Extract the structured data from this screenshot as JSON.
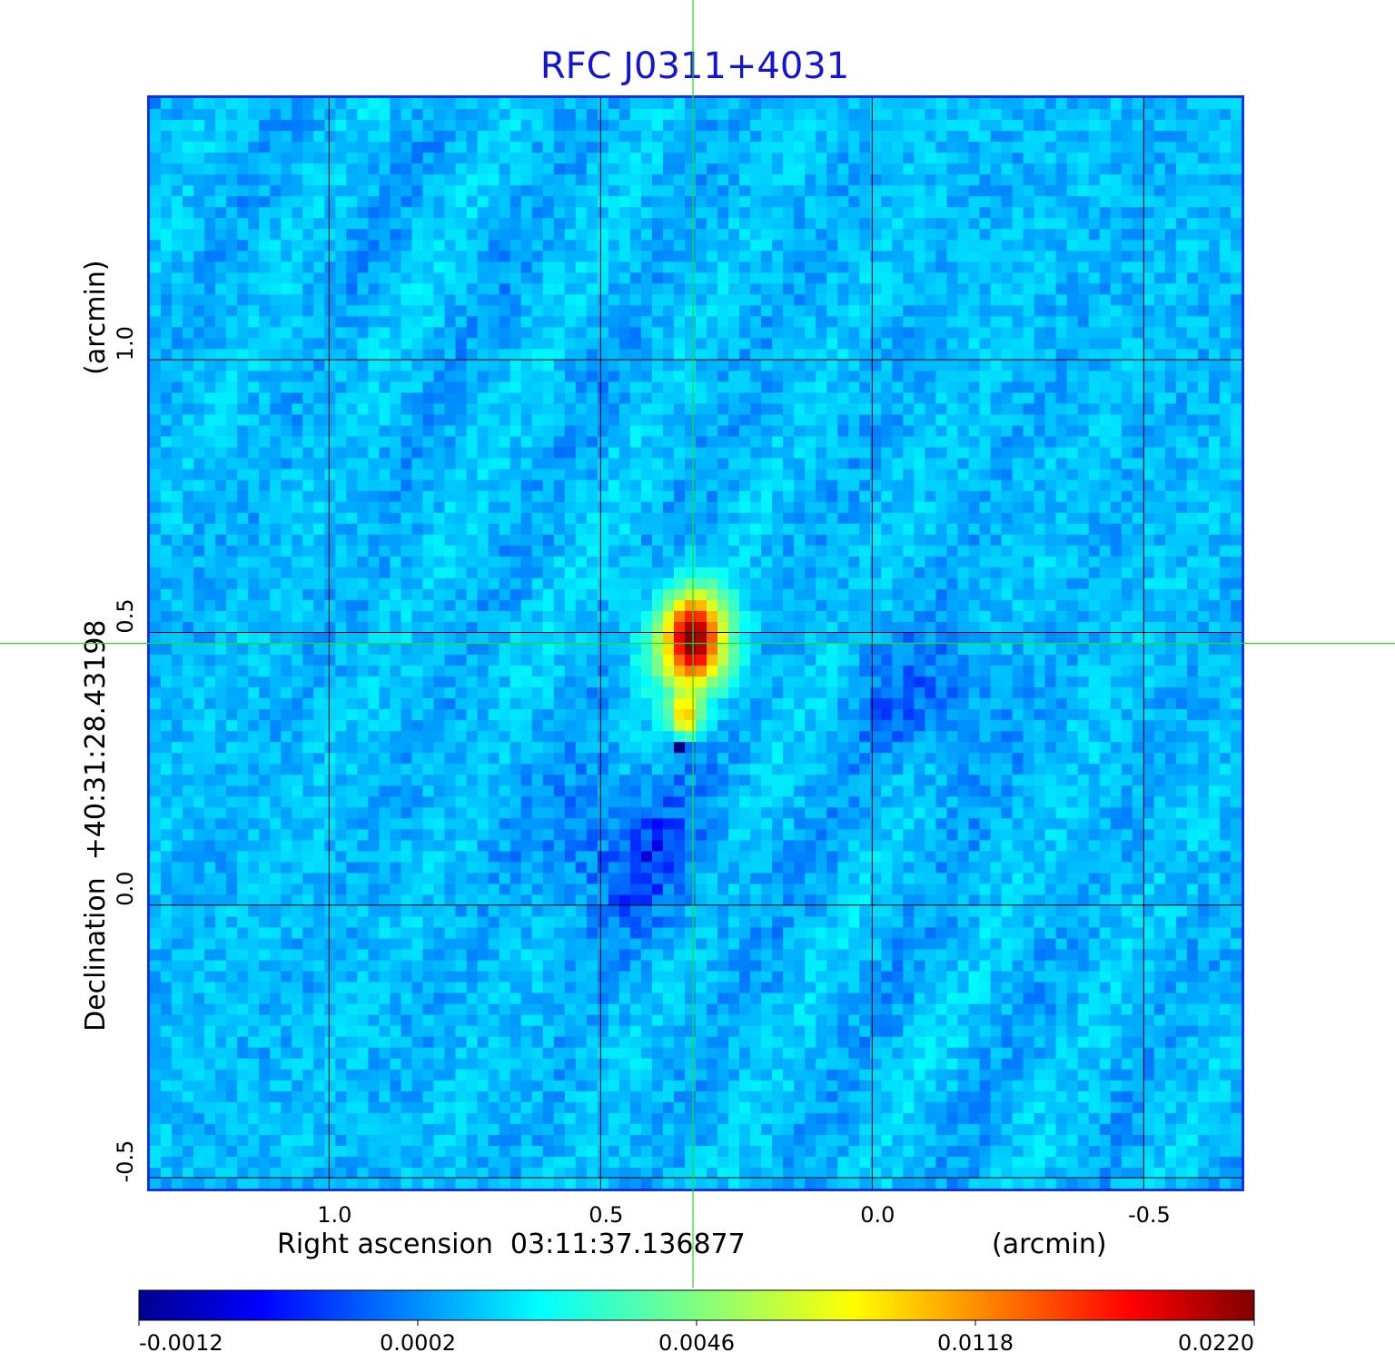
{
  "chart_data": {
    "type": "heatmap",
    "title": "RFC J0311+4031",
    "xlabel": "Right ascension  03:11:37.136877",
    "xunit": "(arcmin)",
    "ylabel": "Declination  +40:31:28.43198",
    "yunit": "(arcmin)",
    "x_ticks": [
      1.0,
      0.5,
      0.0,
      -0.5
    ],
    "x_tick_labels": [
      "1.0",
      "0.5",
      "0.0",
      "-0.5"
    ],
    "y_ticks": [
      1.0,
      0.5,
      0.0,
      -0.5
    ],
    "y_tick_labels": [
      "1.0",
      "0.5",
      "0.0",
      "-0.5"
    ],
    "xlim": [
      1.33,
      -0.68
    ],
    "ylim": [
      -0.52,
      1.48
    ],
    "grid": true,
    "crosshair": {
      "x": 0.33,
      "y": 0.48
    },
    "peak": {
      "x": 0.33,
      "y": 0.48,
      "value": 0.022
    },
    "colorbar": {
      "ticks": [
        -0.0012,
        0.0002,
        0.0046,
        0.0118,
        0.022
      ],
      "tick_labels": [
        "-0.0012",
        "0.0002",
        "0.0046",
        "0.0118",
        "0.0220"
      ],
      "colormap": "jet"
    },
    "colors": {
      "title": "#1414d2",
      "frame": "#0a32e6",
      "crosshair": "#22dd22",
      "grid": "#000000"
    }
  }
}
